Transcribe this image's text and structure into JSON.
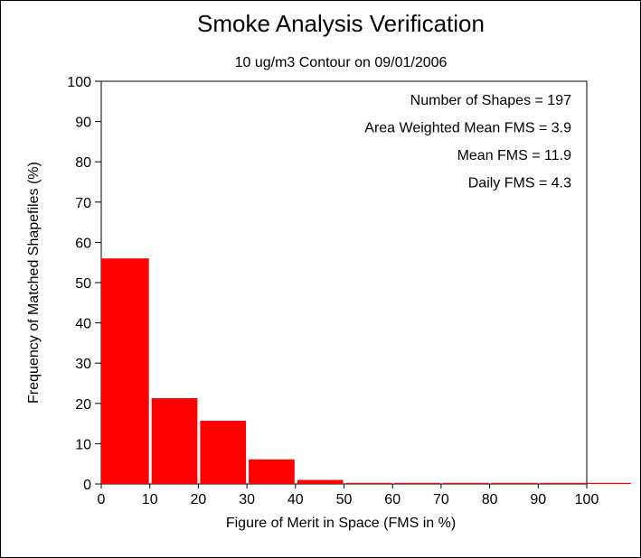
{
  "chart_data": {
    "type": "bar",
    "title": "Smoke Analysis Verification",
    "subtitle": "10 ug/m3 Contour on 09/01/2006",
    "xlabel": "Figure of Merit in Space (FMS in %)",
    "ylabel": "Frequency of Matched Shapefiles (%)",
    "xlim": [
      0,
      100
    ],
    "ylim": [
      0,
      100
    ],
    "x_ticks": [
      "0",
      "10",
      "20",
      "30",
      "40",
      "50",
      "60",
      "70",
      "80",
      "90",
      "100"
    ],
    "y_ticks": [
      "0",
      "10",
      "20",
      "30",
      "40",
      "50",
      "60",
      "70",
      "80",
      "90",
      "100"
    ],
    "bins": [
      {
        "start": 0,
        "end": 10,
        "value": 56.0
      },
      {
        "start": 10,
        "end": 20,
        "value": 21.3
      },
      {
        "start": 20,
        "end": 30,
        "value": 15.7
      },
      {
        "start": 30,
        "end": 40,
        "value": 6.1
      },
      {
        "start": 40,
        "end": 50,
        "value": 1.0
      },
      {
        "start": 50,
        "end": 60,
        "value": 0
      },
      {
        "start": 60,
        "end": 70,
        "value": 0
      },
      {
        "start": 70,
        "end": 80,
        "value": 0
      },
      {
        "start": 80,
        "end": 90,
        "value": 0
      },
      {
        "start": 90,
        "end": 100,
        "value": 0
      }
    ],
    "annotations": [
      "Number of Shapes = 197",
      "Area Weighted Mean FMS = 3.9",
      "Mean FMS = 11.9",
      "Daily FMS = 4.3"
    ],
    "bar_color": "#ff0000",
    "grid": false,
    "legend": "none"
  }
}
